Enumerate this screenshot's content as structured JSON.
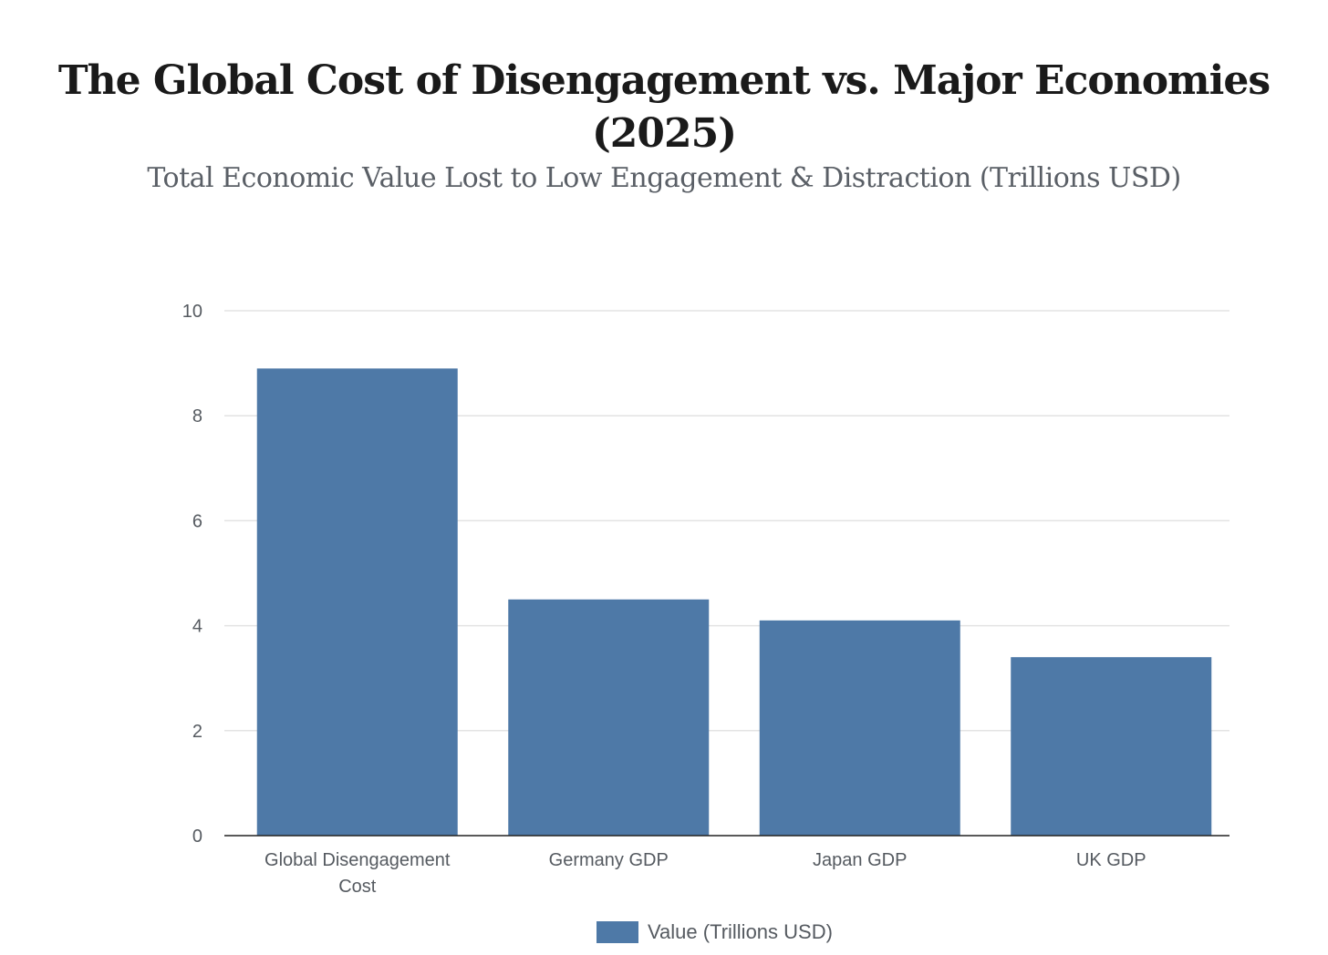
{
  "chart_data": {
    "type": "bar",
    "title_lines": [
      "The Global Cost of Disengagement vs. Major Economies",
      "(2025)"
    ],
    "subtitle": "Total Economic Value Lost to Low Engagement & Distraction (Trillions USD)",
    "categories": [
      [
        "Global Disengagement",
        "Cost"
      ],
      [
        "Germany GDP"
      ],
      [
        "Japan GDP"
      ],
      [
        "UK GDP"
      ]
    ],
    "series": [
      {
        "name": "Value (Trillions USD)",
        "values": [
          8.9,
          4.5,
          4.1,
          3.4
        ],
        "color": "#4e79a7"
      }
    ],
    "ylim": [
      0,
      10
    ],
    "yticks": [
      0,
      2,
      4,
      6,
      8,
      10
    ],
    "grid": true,
    "legend_position": "bottom-center",
    "xlabel": "",
    "ylabel": ""
  }
}
